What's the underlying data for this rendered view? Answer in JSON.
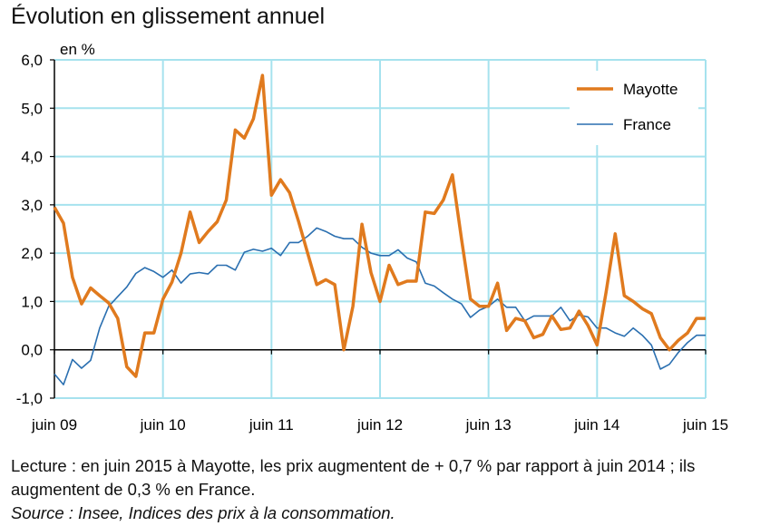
{
  "title": "Évolution en glissement annuel",
  "note_line1": "Lecture : en juin 2015 à Mayotte, les prix augmentent de + 0,7 % par rapport à juin 2014 ; ils",
  "note_line2": "augmentent de 0,3 % en France.",
  "source": "Source : Insee, Indices des prix à la consommation.",
  "chart_data": {
    "type": "line",
    "title": "Évolution en glissement annuel",
    "ylabel": "en %",
    "xlabel": "",
    "ylim": [
      -1.0,
      6.0
    ],
    "yticks": [
      "-1,0",
      "0,0",
      "1,0",
      "2,0",
      "3,0",
      "4,0",
      "5,0",
      "6,0"
    ],
    "xtick_labels": [
      "juin 09",
      "juin 10",
      "juin 11",
      "juin 12",
      "juin 13",
      "juin 14",
      "juin 15"
    ],
    "x_period": "monthly, June 2009 – June 2015",
    "grid": true,
    "legend_position": "top-right",
    "series": [
      {
        "name": "Mayotte",
        "color": "#e07a1e",
        "values": [
          2.95,
          2.62,
          1.5,
          0.95,
          1.28,
          1.12,
          0.97,
          0.65,
          -0.35,
          -0.55,
          0.35,
          0.35,
          1.05,
          1.4,
          2.0,
          2.85,
          2.22,
          2.45,
          2.65,
          3.1,
          4.55,
          4.38,
          4.78,
          5.68,
          3.2,
          3.52,
          3.25,
          2.65,
          2.0,
          1.35,
          1.45,
          1.35,
          0.0,
          0.9,
          2.6,
          1.6,
          1.0,
          1.75,
          1.35,
          1.42,
          1.42,
          2.85,
          2.82,
          3.1,
          3.62,
          2.3,
          1.05,
          0.9,
          0.9,
          1.38,
          0.4,
          0.65,
          0.6,
          0.25,
          0.32,
          0.7,
          0.42,
          0.45,
          0.8,
          0.5,
          0.1,
          1.2,
          2.4,
          1.12,
          1.0,
          0.85,
          0.75,
          0.25,
          0.0,
          0.2,
          0.35,
          0.65,
          0.65
        ]
      },
      {
        "name": "France",
        "color": "#2a6fb0",
        "values": [
          -0.5,
          -0.72,
          -0.2,
          -0.38,
          -0.22,
          0.45,
          0.9,
          1.1,
          1.3,
          1.58,
          1.7,
          1.62,
          1.5,
          1.65,
          1.38,
          1.57,
          1.6,
          1.57,
          1.75,
          1.75,
          1.65,
          2.02,
          2.08,
          2.04,
          2.1,
          1.95,
          2.22,
          2.22,
          2.35,
          2.52,
          2.45,
          2.35,
          2.3,
          2.3,
          2.12,
          2.0,
          1.95,
          1.95,
          2.07,
          1.9,
          1.82,
          1.38,
          1.32,
          1.18,
          1.05,
          0.95,
          0.67,
          0.82,
          0.9,
          1.05,
          0.88,
          0.88,
          0.6,
          0.7,
          0.7,
          0.7,
          0.88,
          0.6,
          0.72,
          0.68,
          0.45,
          0.45,
          0.35,
          0.28,
          0.45,
          0.3,
          0.1,
          -0.4,
          -0.3,
          -0.05,
          0.15,
          0.3,
          0.3
        ]
      }
    ]
  }
}
